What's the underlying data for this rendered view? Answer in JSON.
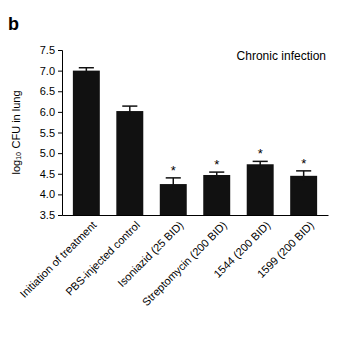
{
  "chart_data": {
    "type": "bar",
    "panel_label": "b",
    "title": "Chronic infection",
    "y_label": "log₁₀ CFU in lung",
    "categories": [
      "Initiation of treatment",
      "PBS-injected control",
      "Isoniazid (25 BID)",
      "Streptomycin (200 BID)",
      "1544 (200 BID)",
      "1599 (200 BID)"
    ],
    "values": [
      7.0,
      6.02,
      4.25,
      4.47,
      4.73,
      4.45
    ],
    "errors": [
      0.07,
      0.12,
      0.15,
      0.07,
      0.07,
      0.12
    ],
    "annotations": [
      null,
      null,
      "*",
      "*",
      "*",
      "*"
    ],
    "color": "#111111",
    "ylim": [
      3.5,
      7.5
    ],
    "yticks": [
      3.5,
      {
        "value": 4,
        "label": "4.0"
      },
      4.5,
      {
        "value": 5,
        "label": "5.0"
      },
      5.5,
      {
        "value": 6,
        "label": "6.0"
      },
      6.5,
      {
        "value": 7,
        "label": "7.0"
      },
      7.5
    ]
  }
}
